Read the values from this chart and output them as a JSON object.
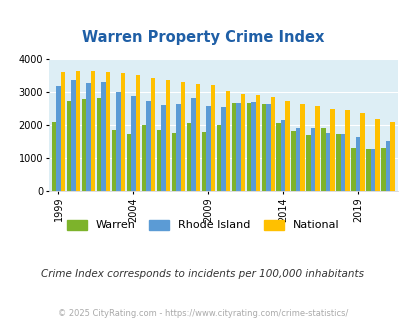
{
  "title": "Warren Property Crime Index",
  "years": [
    1999,
    2000,
    2001,
    2002,
    2003,
    2004,
    2005,
    2006,
    2007,
    2008,
    2009,
    2010,
    2011,
    2012,
    2013,
    2014,
    2015,
    2016,
    2017,
    2018,
    2019,
    2020,
    2021
  ],
  "warren": [
    2100,
    2750,
    2800,
    2830,
    1860,
    1750,
    2020,
    1850,
    1780,
    2060,
    1800,
    2000,
    2680,
    2680,
    2650,
    2070,
    1830,
    1700,
    1930,
    1750,
    1310,
    1300,
    1310
  ],
  "rhode_island": [
    3180,
    3380,
    3300,
    3330,
    3000,
    2900,
    2730,
    2610,
    2640,
    2840,
    2600,
    2560,
    2670,
    2700,
    2650,
    2150,
    1930,
    1920,
    1760,
    1730,
    1650,
    1300,
    1540
  ],
  "national": [
    3620,
    3660,
    3660,
    3610,
    3590,
    3520,
    3450,
    3370,
    3310,
    3260,
    3220,
    3050,
    2960,
    2920,
    2870,
    2740,
    2640,
    2580,
    2500,
    2460,
    2380,
    2180,
    2100
  ],
  "warren_color": "#7db32b",
  "ri_color": "#5b9bd5",
  "national_color": "#ffc000",
  "bg_color": "#ddeef5",
  "title_color": "#1f5fa6",
  "ylim": [
    0,
    4000
  ],
  "yticks": [
    0,
    1000,
    2000,
    3000,
    4000
  ],
  "xlabel_ticks": [
    1999,
    2004,
    2009,
    2014,
    2019
  ],
  "subtitle": "Crime Index corresponds to incidents per 100,000 inhabitants",
  "footer": "© 2025 CityRating.com - https://www.cityrating.com/crime-statistics/",
  "subtitle_color": "#333333",
  "footer_color": "#aaaaaa",
  "grid_color": "#ffffff"
}
